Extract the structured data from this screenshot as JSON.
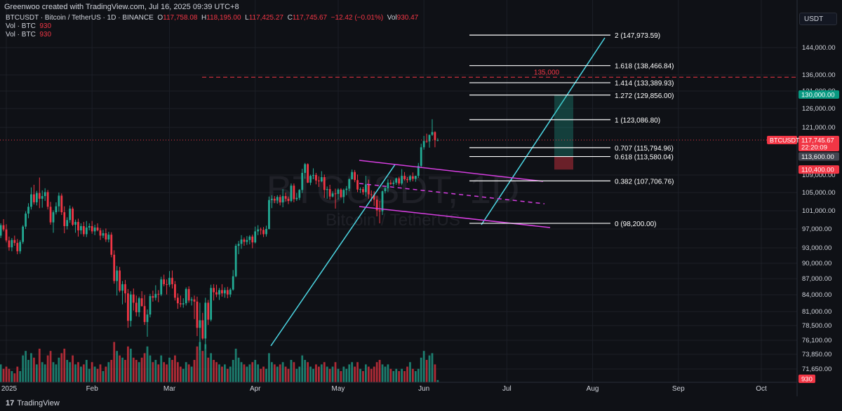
{
  "header": {
    "credit": "Greenwoo created with TradingView.com, Jul 16, 2025 09:39 UTC+8"
  },
  "legend": {
    "symbol": "BTCUSDT · Bitcoin / TetherUS · 1D · BINANCE",
    "o_label": "O",
    "o": "117,758.08",
    "h_label": "H",
    "h": "118,195.00",
    "l_label": "L",
    "l": "117,425.27",
    "c_label": "C",
    "c": "117,745.67",
    "chg": "−12.42 (−0.01%)",
    "vol_label": "Vol",
    "vol": "930.47",
    "ind1_name": "Vol · BTC",
    "ind1_val": "930",
    "ind2_name": "Vol · BTC",
    "ind2_val": "930"
  },
  "axis_unit": "USDT",
  "footer": {
    "logo_mark": "17",
    "logo_text": "TradingView"
  },
  "colors": {
    "bg": "#0f1116",
    "up": "#22ab94",
    "down": "#f23645",
    "fib": "#ffffff",
    "trend": "#4dd9e6",
    "channel": "#d63ee0",
    "dash": "#f23645",
    "grid": "#1c1f27",
    "text": "#d1d4dc"
  },
  "chart_data": {
    "type": "candlestick",
    "watermark": {
      "symbol": "BTCUSDT, 1D",
      "name": "Bitcoin / TetherUS"
    },
    "y_ticks": [
      "144,000.00",
      "136,000.00",
      "131,000.00",
      "126,000.00",
      "121,000.00",
      "109,000.00",
      "105,000.00",
      "101,000.00",
      "97,000.00",
      "93,000.00",
      "90,000.00",
      "87,000.00",
      "84,000.00",
      "81,000.00",
      "78,500.00",
      "76,100.00",
      "73,850.00",
      "71,650.00"
    ],
    "x_ticks": [
      "2025",
      "Feb",
      "Mar",
      "Apr",
      "May",
      "Jun",
      "Jul",
      "Aug",
      "Sep",
      "Oct"
    ],
    "last_price": {
      "symbol": "BTCUSDT",
      "value": "117,745.67",
      "countdown": "22:20:09"
    },
    "target": {
      "value": "130,000.00"
    },
    "entry": {
      "value": "113,600.00"
    },
    "stop": {
      "value": "110,400.00"
    },
    "volume_label": "930",
    "horizontal_level": {
      "label": "135,000",
      "value": 135000
    },
    "fib_levels": [
      {
        "label": "2 (147,973.59)",
        "value": 147973.59
      },
      {
        "label": "1.618 (138,466.84)",
        "value": 138466.84
      },
      {
        "label": "1.414 (133,389.93)",
        "value": 133389.93
      },
      {
        "label": "1.272 (129,856.00)",
        "value": 129856.0
      },
      {
        "label": "1 (123,086.80)",
        "value": 123086.8
      },
      {
        "label": "0.707 (115,794.96)",
        "value": 115794.96
      },
      {
        "label": "0.618 (113,580.04)",
        "value": 113580.04
      },
      {
        "label": "0.382 (107,706.76)",
        "value": 107706.76
      },
      {
        "label": "0 (98,200.00)",
        "value": 98200.0
      }
    ],
    "ohlc": [
      [
        94500,
        96200,
        93400,
        95600
      ],
      [
        95600,
        98200,
        95100,
        97800
      ],
      [
        97800,
        99100,
        96500,
        96900
      ],
      [
        96900,
        98000,
        94200,
        94600
      ],
      [
        94600,
        95400,
        92500,
        93200
      ],
      [
        93200,
        95100,
        92400,
        94700
      ],
      [
        94700,
        95600,
        93500,
        94100
      ],
      [
        94100,
        94900,
        91800,
        92400
      ],
      [
        92400,
        94700,
        91900,
        94300
      ],
      [
        94300,
        97800,
        93900,
        97500
      ],
      [
        97500,
        100800,
        97000,
        100300
      ],
      [
        100300,
        102600,
        99300,
        101800
      ],
      [
        101800,
        106200,
        101200,
        104600
      ],
      [
        104600,
        106800,
        102300,
        102800
      ],
      [
        102800,
        105400,
        102100,
        104900
      ],
      [
        104900,
        108500,
        101500,
        103600
      ],
      [
        103600,
        105500,
        101600,
        104200
      ],
      [
        104200,
        106000,
        103100,
        105100
      ],
      [
        105100,
        105600,
        101200,
        101800
      ],
      [
        101800,
        102900,
        97900,
        98400
      ],
      [
        98400,
        101000,
        96200,
        100600
      ],
      [
        100600,
        102800,
        100100,
        101900
      ],
      [
        101900,
        105000,
        100700,
        104300
      ],
      [
        104300,
        104800,
        100000,
        100600
      ],
      [
        100600,
        101900,
        96100,
        97600
      ],
      [
        97600,
        99500,
        96900,
        98900
      ],
      [
        98900,
        102100,
        98300,
        101400
      ],
      [
        101400,
        101800,
        97600,
        97900
      ],
      [
        97900,
        99000,
        96200,
        98500
      ],
      [
        98500,
        99200,
        95400,
        96700
      ],
      [
        96700,
        98200,
        95900,
        97600
      ],
      [
        97600,
        98500,
        95400,
        95900
      ],
      [
        95900,
        98700,
        95300,
        97300
      ],
      [
        97300,
        98200,
        96700,
        97600
      ],
      [
        97600,
        98700,
        96000,
        96500
      ],
      [
        96500,
        97900,
        95700,
        97300
      ],
      [
        97300,
        98200,
        96500,
        96700
      ],
      [
        96700,
        97200,
        94700,
        95600
      ],
      [
        95600,
        96800,
        95100,
        96100
      ],
      [
        96100,
        97100,
        94300,
        94800
      ],
      [
        94800,
        96400,
        94200,
        95800
      ],
      [
        95800,
        96300,
        91200,
        91700
      ],
      [
        91700,
        92600,
        86100,
        86600
      ],
      [
        86600,
        89500,
        83900,
        88600
      ],
      [
        88600,
        89300,
        84500,
        84800
      ],
      [
        84800,
        86600,
        82300,
        86000
      ],
      [
        86000,
        86800,
        82600,
        84300
      ],
      [
        84300,
        85100,
        78200,
        79400
      ],
      [
        79400,
        84700,
        78400,
        84100
      ],
      [
        84100,
        85200,
        81200,
        82600
      ],
      [
        82600,
        83900,
        80200,
        80900
      ],
      [
        80900,
        83700,
        80100,
        83400
      ],
      [
        83400,
        84700,
        81900,
        82000
      ],
      [
        82000,
        84000,
        78700,
        79200
      ],
      [
        79200,
        81400,
        76700,
        80500
      ],
      [
        80500,
        84200,
        80000,
        83800
      ],
      [
        83800,
        84800,
        82800,
        83500
      ],
      [
        83500,
        85800,
        83000,
        84200
      ],
      [
        84200,
        84900,
        82700,
        84100
      ],
      [
        84100,
        87400,
        83800,
        86900
      ],
      [
        86900,
        87800,
        85600,
        86000
      ],
      [
        86000,
        86900,
        84100,
        85900
      ],
      [
        85900,
        88500,
        85500,
        87200
      ],
      [
        87200,
        88600,
        85200,
        86000
      ],
      [
        86000,
        86600,
        83000,
        83500
      ],
      [
        83500,
        84300,
        81500,
        82500
      ],
      [
        82500,
        83900,
        81800,
        82300
      ],
      [
        82300,
        83400,
        81700,
        82500
      ],
      [
        82500,
        85400,
        82100,
        85100
      ],
      [
        85100,
        85600,
        82600,
        83000
      ],
      [
        83000,
        83600,
        82100,
        83200
      ],
      [
        83200,
        83900,
        79700,
        82800
      ],
      [
        82800,
        83700,
        76800,
        78200
      ],
      [
        78200,
        82600,
        74500,
        79500
      ],
      [
        79500,
        80800,
        76200,
        76400
      ],
      [
        76400,
        83500,
        74700,
        82600
      ],
      [
        82600,
        83100,
        78700,
        79600
      ],
      [
        79600,
        85900,
        79300,
        85300
      ],
      [
        85300,
        86000,
        83000,
        84500
      ],
      [
        84500,
        85900,
        83600,
        84100
      ],
      [
        84100,
        85300,
        83100,
        84900
      ],
      [
        84900,
        86000,
        83700,
        84300
      ],
      [
        84300,
        85400,
        83500,
        84900
      ],
      [
        84900,
        85500,
        83400,
        84100
      ],
      [
        84100,
        85300,
        83600,
        85000
      ],
      [
        85000,
        88700,
        84800,
        87500
      ],
      [
        87500,
        93900,
        87300,
        93500
      ],
      [
        93500,
        94500,
        91800,
        93900
      ],
      [
        93900,
        95700,
        92900,
        94800
      ],
      [
        94800,
        95200,
        93500,
        94300
      ],
      [
        94300,
        95500,
        93700,
        94700
      ],
      [
        94700,
        95700,
        93800,
        95400
      ],
      [
        95400,
        95800,
        93000,
        94200
      ],
      [
        94200,
        97500,
        94000,
        96500
      ],
      [
        96500,
        97800,
        95700,
        96900
      ],
      [
        96900,
        97300,
        95800,
        96800
      ],
      [
        96800,
        97400,
        95300,
        95900
      ],
      [
        95900,
        97700,
        95400,
        97000
      ],
      [
        97000,
        104100,
        96900,
        103300
      ],
      [
        103300,
        104400,
        101500,
        103600
      ],
      [
        103600,
        104200,
        102600,
        103200
      ],
      [
        103200,
        104400,
        102500,
        104000
      ],
      [
        104000,
        104500,
        102100,
        102800
      ],
      [
        102800,
        105800,
        101700,
        104200
      ],
      [
        104200,
        105000,
        103000,
        103600
      ],
      [
        103600,
        104100,
        102400,
        103100
      ],
      [
        103100,
        107100,
        102800,
        106600
      ],
      [
        106600,
        107100,
        102800,
        103500
      ],
      [
        103500,
        104900,
        103100,
        103800
      ],
      [
        103800,
        105800,
        103300,
        105600
      ],
      [
        105600,
        110600,
        104900,
        109600
      ],
      [
        109600,
        112000,
        108200,
        111700
      ],
      [
        111700,
        111900,
        107200,
        107300
      ],
      [
        107300,
        109200,
        106700,
        108900
      ],
      [
        108900,
        110700,
        108100,
        109100
      ],
      [
        109100,
        109600,
        106900,
        107800
      ],
      [
        107800,
        108800,
        106300,
        107600
      ],
      [
        107600,
        110000,
        107400,
        108600
      ],
      [
        108600,
        109200,
        103800,
        105600
      ],
      [
        105600,
        106400,
        103600,
        105800
      ],
      [
        105800,
        106800,
        103400,
        104100
      ],
      [
        104100,
        105300,
        103900,
        104800
      ],
      [
        104800,
        105900,
        101400,
        104700
      ],
      [
        104700,
        106000,
        103400,
        105700
      ],
      [
        105700,
        106000,
        103800,
        104000
      ],
      [
        104000,
        105900,
        102600,
        105600
      ],
      [
        105600,
        106500,
        104400,
        105900
      ],
      [
        105900,
        108300,
        105300,
        108100
      ],
      [
        108100,
        110400,
        108000,
        109800
      ],
      [
        109800,
        110300,
        107400,
        107900
      ],
      [
        107900,
        109200,
        105100,
        105700
      ],
      [
        105700,
        106200,
        104900,
        105800
      ],
      [
        105800,
        106300,
        104500,
        105100
      ],
      [
        105100,
        108900,
        104100,
        106900
      ],
      [
        106900,
        108000,
        103600,
        104600
      ],
      [
        104600,
        105500,
        103000,
        104500
      ],
      [
        104500,
        105300,
        102000,
        103400
      ],
      [
        103400,
        104300,
        99700,
        101000
      ],
      [
        101000,
        103100,
        98200,
        100800
      ],
      [
        100800,
        105500,
        100000,
        105300
      ],
      [
        105300,
        106300,
        104800,
        106000
      ],
      [
        106000,
        108100,
        105100,
        107300
      ],
      [
        107300,
        108000,
        106700,
        107000
      ],
      [
        107000,
        107800,
        106500,
        107300
      ],
      [
        107300,
        108500,
        106800,
        108300
      ],
      [
        108300,
        108700,
        106600,
        107100
      ],
      [
        107100,
        110500,
        106700,
        108900
      ],
      [
        108900,
        109800,
        107800,
        108100
      ],
      [
        108100,
        108600,
        107300,
        107900
      ],
      [
        107900,
        109100,
        107500,
        108800
      ],
      [
        108800,
        109700,
        107600,
        108200
      ],
      [
        108200,
        108900,
        107500,
        108900
      ],
      [
        108900,
        112000,
        108400,
        111300
      ],
      [
        111300,
        116800,
        110800,
        115900
      ],
      [
        115900,
        118800,
        115300,
        117500
      ],
      [
        117500,
        119400,
        117000,
        117400
      ],
      [
        117400,
        119100,
        115800,
        119100
      ],
      [
        119100,
        123200,
        118800,
        119800
      ],
      [
        119800,
        120000,
        115900,
        117700
      ],
      [
        117700,
        118200,
        117400,
        117750
      ]
    ],
    "volume": [
      5,
      8,
      6,
      7,
      6,
      5,
      4,
      7,
      5,
      12,
      14,
      10,
      13,
      11,
      8,
      15,
      9,
      8,
      12,
      14,
      9,
      8,
      11,
      13,
      15,
      10,
      9,
      12,
      8,
      9,
      7,
      8,
      10,
      6,
      9,
      7,
      6,
      8,
      5,
      7,
      9,
      10,
      18,
      14,
      12,
      11,
      10,
      16,
      15,
      11,
      10,
      9,
      11,
      13,
      16,
      12,
      9,
      10,
      8,
      12,
      9,
      8,
      11,
      10,
      12,
      9,
      7,
      6,
      9,
      8,
      7,
      10,
      16,
      18,
      14,
      17,
      11,
      13,
      10,
      9,
      8,
      7,
      8,
      6,
      7,
      10,
      15,
      11,
      9,
      8,
      7,
      8,
      9,
      10,
      8,
      6,
      7,
      6,
      13,
      9,
      8,
      7,
      8,
      9,
      7,
      6,
      10,
      9,
      6,
      7,
      12,
      10,
      9,
      7,
      6,
      8,
      7,
      8,
      9,
      7,
      6,
      7,
      9,
      6,
      5,
      7,
      6,
      8,
      9,
      7,
      9,
      6,
      5,
      8,
      7,
      6,
      7,
      9,
      10,
      8,
      7,
      8,
      6,
      5,
      6,
      5,
      6,
      5,
      7,
      9,
      6,
      5,
      6,
      11,
      14,
      10,
      12,
      13,
      8,
      1
    ]
  }
}
